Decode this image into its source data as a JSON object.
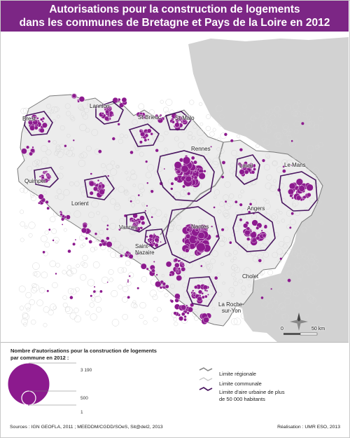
{
  "title": {
    "line1": "Autorisations pour la construction de logements",
    "line2": "dans les communes de Bretagne et Pays de la Loire en 2012"
  },
  "colors": {
    "header": "#7c2685",
    "symbol": "#8c1a8e",
    "region_fill": "#ececec",
    "outside_fill": "#d2d2d2",
    "urban_limit": "#4a1660"
  },
  "cities": {
    "lannion": "Lannion",
    "brest": "Brest",
    "saint_brieuc": "St-Brieuc",
    "saint_malo": "St-Malo",
    "rennes": "Rennes",
    "laval": "Laval",
    "le_mans": "Le Mans",
    "quimper": "Quimper",
    "lorient": "Lorient",
    "angers": "Angers",
    "vannes": "Vannes",
    "nantes": "Nantes",
    "saint_nazaire_1": "Saint-",
    "saint_nazaire_2": "Nazaire",
    "cholet": "Cholet",
    "la_roche_1": "La Roche-",
    "la_roche_2": "sur-Yon"
  },
  "scale": {
    "zero": "0",
    "max": "50 km"
  },
  "north_icon": "compass-rose-icon",
  "legend": {
    "title_line1": "Nombre d'autorisations pour la construction de logements",
    "title_line2": "par commune en 2012 :",
    "values": {
      "max": "3 190",
      "mid": "500",
      "min": "1"
    },
    "lines": {
      "regional": "Limite régionale",
      "communal": "Limite communale",
      "urban_1": "Limite d'aire urbaine de plus",
      "urban_2": "de 50 000 habitants"
    }
  },
  "sources": "Sources : IGN GEOFLA, 2011 ; MEEDDM/CGDD/SOeS, Sit@del2, 2013",
  "realisation": "Réalisation : UMR ESO, 2013"
}
